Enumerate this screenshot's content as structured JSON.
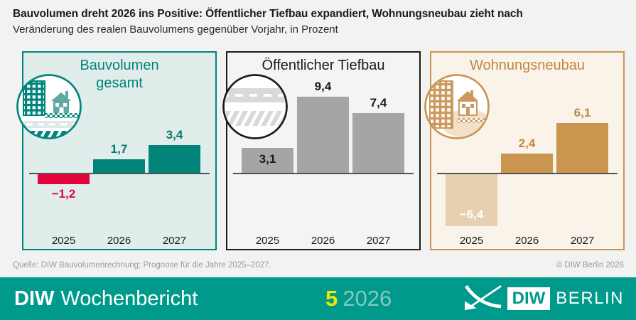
{
  "header": {
    "title": "Bauvolumen dreht 2026 ins Positive: Öffentlicher Tiefbau expandiert, Wohnungsneubau zieht nach",
    "subtitle": "Veränderung des realen Bauvolumens gegenüber Vorjahr, in Prozent"
  },
  "chart_data": [
    {
      "type": "bar",
      "title": "Bauvolumen gesamt",
      "categories": [
        "2025",
        "2026",
        "2027"
      ],
      "values": [
        -1.2,
        1.7,
        3.4
      ],
      "value_labels": [
        "−1,2",
        "1,7",
        "3,4"
      ],
      "label_positions": [
        "below",
        "above",
        "above"
      ],
      "ylim": [
        -8,
        10
      ],
      "grid": false,
      "icon": "city-house-road-rail-icon",
      "colors": {
        "border": "#00847c",
        "background": "#e0edeb",
        "title": "#00847c",
        "positive_bar": "#00847a",
        "negative_bar": "#e2063a",
        "positive_label": "#00786f",
        "negative_label": "#e2063a"
      }
    },
    {
      "type": "bar",
      "title": "Öffentlicher Tiefbau",
      "categories": [
        "2025",
        "2026",
        "2027"
      ],
      "values": [
        3.1,
        9.4,
        7.4
      ],
      "value_labels": [
        "3,1",
        "9,4",
        "7,4"
      ],
      "label_positions": [
        "inside-top",
        "above",
        "above"
      ],
      "ylim": [
        -8,
        10
      ],
      "grid": false,
      "icon": "road-rail-icon",
      "colors": {
        "border": "#1a1a1a",
        "background": "#f4f4f2",
        "title": "#1a1a1a",
        "positive_bar": "#a5a5a3",
        "negative_bar": "#a5a5a3",
        "positive_label": "#1a1a1a",
        "negative_label": "#1a1a1a"
      }
    },
    {
      "type": "bar",
      "title": "Wohnungsneubau",
      "categories": [
        "2025",
        "2026",
        "2027"
      ],
      "values": [
        -6.4,
        2.4,
        6.1
      ],
      "value_labels": [
        "−6,4",
        "2,4",
        "6,1"
      ],
      "label_positions": [
        "inside-bottom",
        "above",
        "above"
      ],
      "ylim": [
        -8,
        10
      ],
      "grid": false,
      "icon": "buildings-house-icon",
      "colors": {
        "border": "#c89557",
        "background": "#f9f3ea",
        "title": "#c0873d",
        "positive_bar": "#c9954f",
        "negative_bar": "#e6d0af",
        "positive_label": "#c0873d",
        "negative_label": "#ffffff"
      }
    }
  ],
  "source_line": {
    "left": "Quelle: DIW Bauvolumenrechnung; Prognose für die Jahre 2025–2027.",
    "right": "© DIW Berlin 2026"
  },
  "footer": {
    "bar_color": "#009a8c",
    "publication_bold": "DIW",
    "publication_rest": "Wochenbericht",
    "issue_number": "5",
    "issue_year": "2026",
    "issue_number_color": "#f3e600",
    "logo_diw": "DIW",
    "logo_berlin": "BERLIN"
  }
}
